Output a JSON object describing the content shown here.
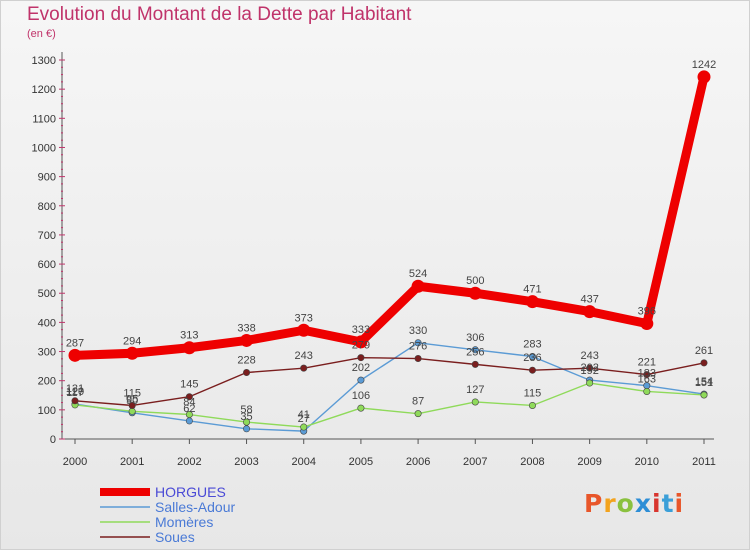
{
  "header": {
    "title": "Evolution du Montant de la Dette par Habitant",
    "unit": "(en €)"
  },
  "logo": {
    "text": "Proxiti",
    "colors": [
      "#e8562a",
      "#f3a31e",
      "#8ac13f",
      "#2d8ed6",
      "#d8352e",
      "#3b9fd8",
      "#e8562a"
    ]
  },
  "chart_data": {
    "type": "line",
    "x": [
      "2000",
      "2001",
      "2002",
      "2003",
      "2004",
      "2005",
      "2006",
      "2007",
      "2008",
      "2009",
      "2010",
      "2011"
    ],
    "ylim": [
      0,
      1300
    ],
    "yticks": [
      0,
      100,
      200,
      300,
      400,
      500,
      600,
      700,
      800,
      900,
      1000,
      1100,
      1200,
      1300
    ],
    "grid": false,
    "legend_position": "bottom-left",
    "series": [
      {
        "name": "HORGUES",
        "color": "#ee0000",
        "values": [
          287,
          294,
          313,
          338,
          373,
          333,
          524,
          500,
          471,
          437,
          396,
          1242
        ],
        "labels": [
          "287",
          "294",
          "313",
          "338",
          "373",
          "333",
          "524",
          "500",
          "471",
          "437",
          "396",
          "1242"
        ]
      },
      {
        "name": "Salles-Adour",
        "color": "#5b9bd5",
        "values": [
          120,
          90,
          62,
          35,
          27,
          202,
          330,
          306,
          283,
          202,
          183,
          154
        ],
        "labels": [
          "120",
          "90",
          "62",
          "35",
          "27",
          "202",
          "330",
          "306",
          "283",
          "202",
          "183",
          "154"
        ]
      },
      {
        "name": "Momères",
        "color": "#8fda5a",
        "values": [
          117,
          95,
          84,
          58,
          41,
          106,
          87,
          127,
          115,
          192,
          163,
          151
        ],
        "labels": [
          "117",
          "95",
          "84",
          "58",
          "41",
          "106",
          "87",
          "127",
          "115",
          "192",
          "163",
          "151"
        ]
      },
      {
        "name": "Soues",
        "color": "#7a1e1e",
        "values": [
          131,
          115,
          145,
          228,
          243,
          279,
          276,
          256,
          236,
          243,
          221,
          261
        ],
        "labels": [
          "131",
          "115",
          "145",
          "228",
          "243",
          "279",
          "276",
          "256",
          "236",
          "243",
          "221",
          "261"
        ]
      }
    ]
  }
}
